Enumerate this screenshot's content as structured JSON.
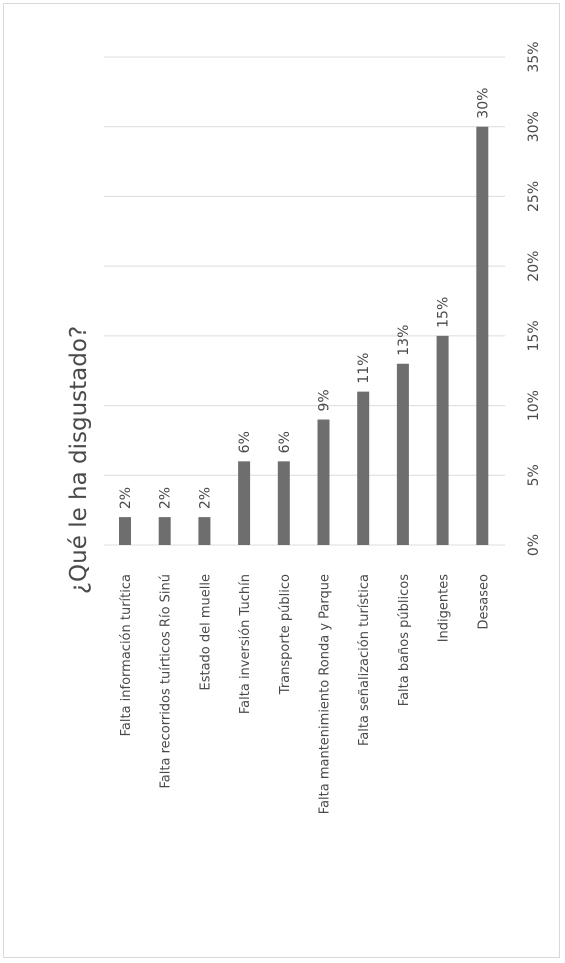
{
  "chart_data": {
    "type": "bar",
    "orientation": "vertical",
    "title": "¿Qué le ha disgustado?",
    "categories": [
      "Falta información turítica",
      "Falta recorridos tuírticos Río Sinú",
      "Estado del muelle",
      "Falta inversión Tuchín",
      "Transporte público",
      "Falta mantenimiento Ronda y Parque",
      "Falta señalización turística",
      "Falta baños públicos",
      "Indigentes",
      "Desaseo"
    ],
    "values": [
      2,
      2,
      2,
      6,
      6,
      9,
      11,
      13,
      15,
      30
    ],
    "data_labels": [
      "2%",
      "2%",
      "2%",
      "6%",
      "6%",
      "9%",
      "11%",
      "13%",
      "15%",
      "30%"
    ],
    "ylim": [
      0,
      35
    ],
    "yticks": [
      "0%",
      "5%",
      "10%",
      "15%",
      "20%",
      "25%",
      "30%",
      "35%"
    ],
    "grid": true,
    "rotation": "page rotated 90° counter-clockwise",
    "colors": {
      "bar": "#6e6e6e",
      "grid": "#dcdcdc",
      "text": "#4a4a4a"
    }
  }
}
